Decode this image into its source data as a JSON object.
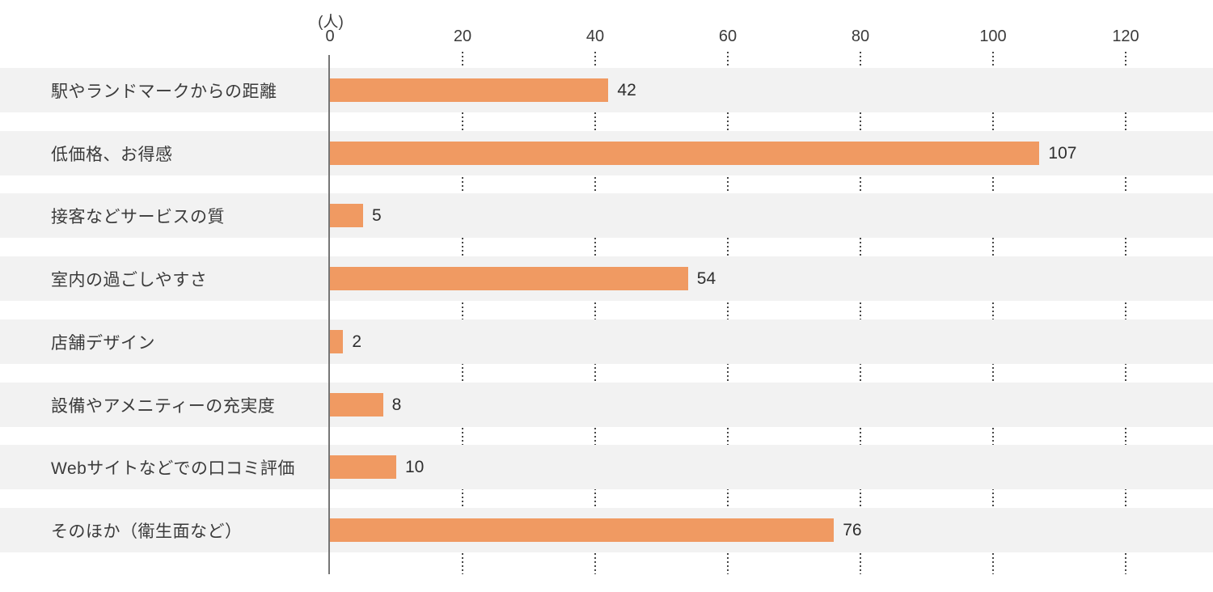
{
  "chart_data": {
    "type": "bar",
    "orientation": "horizontal",
    "title": "",
    "unit_label": "(人)",
    "xlabel": "",
    "ylabel": "",
    "xlim": [
      0,
      120
    ],
    "ticks": [
      0,
      20,
      40,
      60,
      80,
      100,
      120
    ],
    "grid": "dotted-vertical-ticks-in-row-gaps",
    "legend": false,
    "categories": [
      "駅やランドマークからの距離",
      "低価格、お得感",
      "接客などサービスの質",
      "室内の過ごしやすさ",
      "店舗デザイン",
      "設備やアメニティーの充実度",
      "Webサイトなどでの口コミ評価",
      "そのほか（衛生面など）"
    ],
    "values": [
      42,
      107,
      5,
      54,
      2,
      8,
      10,
      76
    ],
    "colors": {
      "bar": "#f09a62",
      "row_background": "#f2f2f2",
      "text": "#3b3b3b",
      "axis_line": "#767676",
      "grid_dots": "#474747",
      "page_background": "#ffffff"
    }
  }
}
